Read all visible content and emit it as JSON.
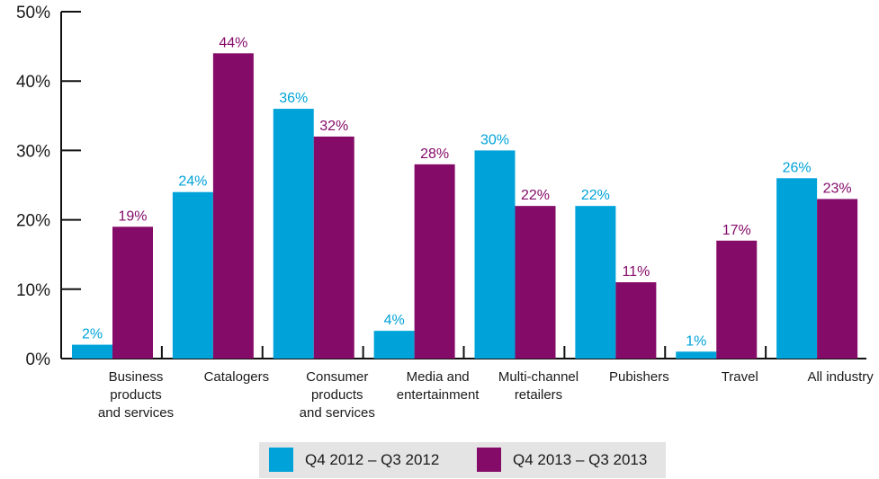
{
  "chart_data": {
    "type": "bar",
    "categories": [
      [
        "Business",
        "products",
        "and services"
      ],
      [
        "Catalogers"
      ],
      [
        "Consumer",
        "products",
        "and services"
      ],
      [
        "Media and",
        "entertainment"
      ],
      [
        "Multi-channel",
        "retailers"
      ],
      [
        "Pubishers"
      ],
      [
        "Travel"
      ],
      [
        "All industry"
      ]
    ],
    "series": [
      {
        "name": "Q4 2012 – Q3 2012",
        "color": "#00a3d9",
        "values": [
          2,
          24,
          36,
          4,
          30,
          22,
          1,
          26
        ],
        "labels": [
          "2%",
          "24%",
          "36%",
          "4%",
          "30%",
          "22%",
          "1%",
          "26%"
        ]
      },
      {
        "name": "Q4 2013 – Q3 2013",
        "color": "#850b69",
        "values": [
          19,
          44,
          32,
          28,
          22,
          11,
          17,
          23
        ],
        "labels": [
          "19%",
          "44%",
          "32%",
          "28%",
          "22%",
          "11%",
          "17%",
          "23%"
        ]
      }
    ],
    "yticks": [
      "0%",
      "10%",
      "20%",
      "30%",
      "40%",
      "50%"
    ],
    "ylim": [
      0,
      50
    ],
    "unit": "%",
    "grid": false,
    "legend_position": "bottom"
  }
}
